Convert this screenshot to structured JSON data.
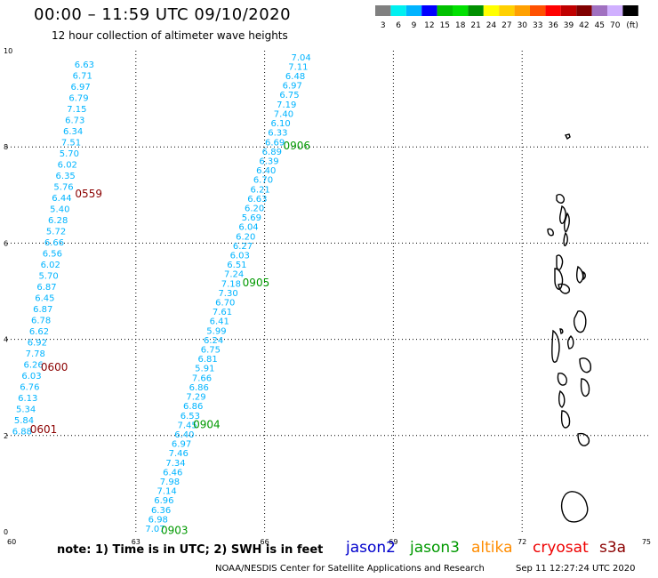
{
  "header": {
    "title": "00:00 – 11:59 UTC 09/10/2020",
    "subtitle": "12 hour collection of altimeter wave heights"
  },
  "legend": {
    "colors": [
      "#808080",
      "#00f0f0",
      "#00b4ff",
      "#0000ff",
      "#00c000",
      "#00e000",
      "#009000",
      "#ffff00",
      "#ffd000",
      "#ffa000",
      "#ff5000",
      "#ff0000",
      "#c00000",
      "#800000",
      "#a070c0",
      "#d0b0ff",
      "#000000"
    ],
    "labels": [
      "3",
      "6",
      "9",
      "12",
      "15",
      "18",
      "21",
      "24",
      "27",
      "30",
      "33",
      "36",
      "39",
      "42",
      "45",
      "70",
      "(ft)"
    ]
  },
  "footer": {
    "note": "note: 1) Time is in UTC; 2) SWH is in feet",
    "satellites": [
      {
        "name": "jason2",
        "color": "#0000cc"
      },
      {
        "name": "jason3",
        "color": "#009900"
      },
      {
        "name": "altika",
        "color": "#ff8c00"
      },
      {
        "name": "cryosat",
        "color": "#ee0000"
      },
      {
        "name": "s3a",
        "color": "#8b0000"
      }
    ],
    "credit": "NOAA/NESDIS Center for Satellite Applications and Research",
    "timestamp": "Sep 11 12:27:24 UTC 2020"
  },
  "chart_data": {
    "type": "scatter",
    "xlim": [
      60,
      75
    ],
    "ylim": [
      0,
      10
    ],
    "xticks": [
      "60",
      "63",
      "66",
      "69",
      "72",
      "75"
    ],
    "yticks": [
      "0",
      "2",
      "4",
      "6",
      "8",
      "10"
    ],
    "grid": true,
    "series": [
      {
        "name": "s3a",
        "color": "#8b0000",
        "label_color": "#00b4ff",
        "tracks": [
          {
            "x_start": 61.7,
            "y_start": 9.8,
            "x_end": 60.1,
            "y_end": 2.0
          },
          {
            "x_start": 61.7,
            "y_start": 9.8,
            "x_end": 60.1,
            "y_end": 2.0
          }
        ],
        "values": [
          "6.63",
          "6.71",
          "6.97",
          "6.79",
          "7.15",
          "6.73",
          "6.34",
          "7.51",
          "5.70",
          "6.02",
          "6.35",
          "5.76",
          "6.44",
          "5.40",
          "6.28",
          "5.72",
          "6.66",
          "6.56",
          "6.02",
          "5.70",
          "6.87",
          "6.45",
          "6.87",
          "6.78",
          "6.62",
          "6.92",
          "7.78",
          "6.26",
          "6.03",
          "6.76",
          "6.13",
          "5.34",
          "5.84",
          "6.88"
        ],
        "time_labels": [
          {
            "text": "0559",
            "x": 61.9,
            "y": 6.95
          },
          {
            "text": "0600",
            "x": 61.1,
            "y": 3.35
          },
          {
            "text": "0601",
            "x": 60.85,
            "y": 2.05
          }
        ]
      },
      {
        "name": "jason3",
        "color": "#009900",
        "label_color": "#00b4ff",
        "values": [
          "7.04",
          "7.11",
          "6.48",
          "6.97",
          "6.75",
          "7.19",
          "7.40",
          "6.10",
          "6.33",
          "6.69",
          "6.89",
          "6.39",
          "6.40",
          "6.70",
          "6.21",
          "6.63",
          "6.20",
          "5.69",
          "6.04",
          "6.20",
          "6.27",
          "6.03",
          "6.51",
          "7.24",
          "7.18",
          "7.30",
          "6.70",
          "7.61",
          "6.41",
          "5.99",
          "6.24",
          "6.75",
          "6.81",
          "5.91",
          "7.66",
          "6.86",
          "7.29",
          "6.86",
          "6.53",
          "7.45",
          "6.40",
          "6.97",
          "7.46",
          "7.34",
          "6.46",
          "7.98",
          "7.14",
          "6.96",
          "6.36",
          "6.98",
          "7.07"
        ],
        "time_labels": [
          {
            "text": "0906",
            "x": 66.75,
            "y": 7.95
          },
          {
            "text": "0905",
            "x": 65.8,
            "y": 5.1
          },
          {
            "text": "0904",
            "x": 64.65,
            "y": 2.15
          },
          {
            "text": "0903",
            "x": 63.9,
            "y": -0.05
          }
        ]
      }
    ]
  }
}
